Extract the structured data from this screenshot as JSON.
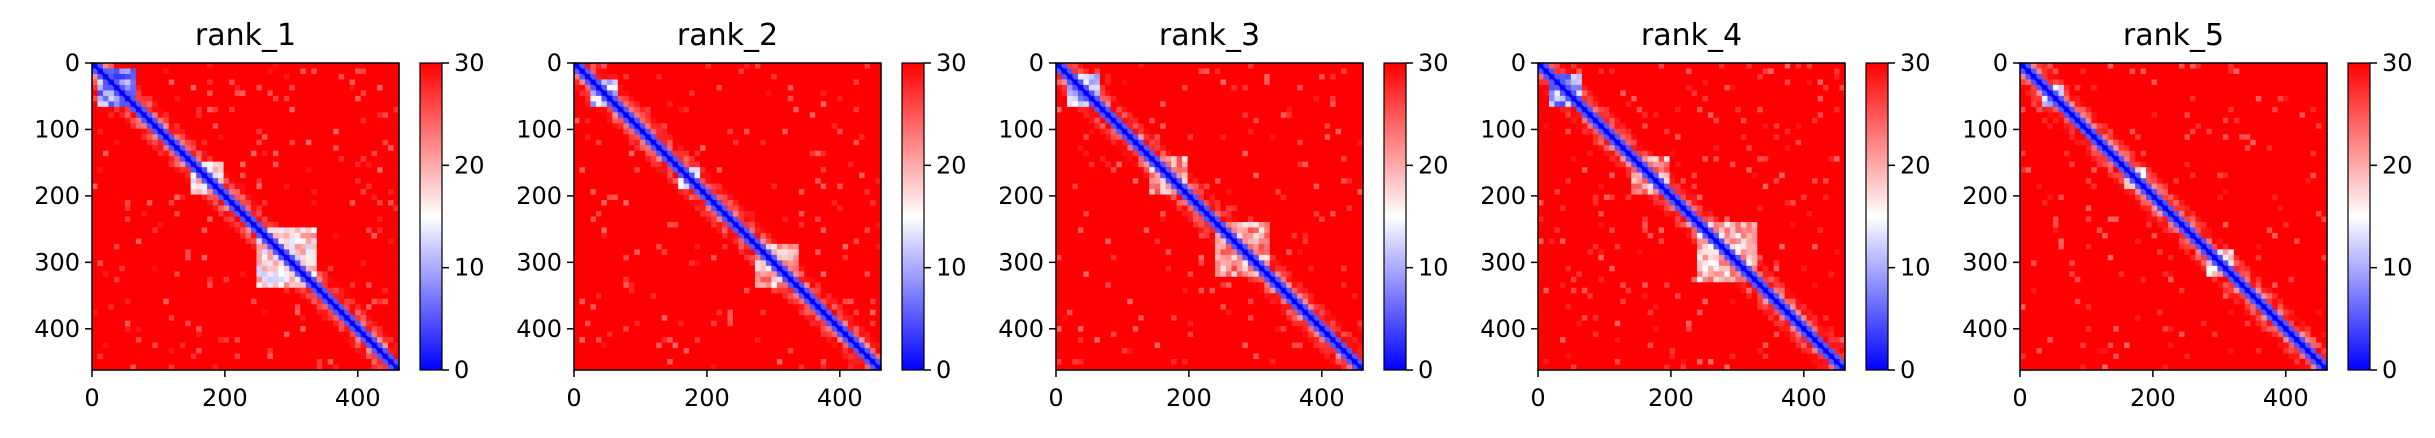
{
  "chart_data": [
    {
      "type": "heatmap",
      "title": "rank_1",
      "x_ticks": [
        0,
        200,
        400
      ],
      "y_ticks": [
        0,
        100,
        200,
        300,
        400
      ],
      "xlim": [
        0,
        462
      ],
      "ylim": [
        462,
        0
      ],
      "matrix_size": 462,
      "colorbar": {
        "ticks": [
          0,
          10,
          20,
          30
        ],
        "range": [
          0,
          30
        ],
        "colors": [
          "#0000ff",
          "#ffffff",
          "#ff0000"
        ]
      },
      "diagonal_domains": [
        {
          "start": 10,
          "end": 70,
          "value": 3
        },
        {
          "start": 150,
          "end": 195,
          "value": 12
        },
        {
          "start": 250,
          "end": 340,
          "value": 12
        },
        {
          "start": 385,
          "end": 405,
          "value": 6
        }
      ]
    },
    {
      "type": "heatmap",
      "title": "rank_2",
      "x_ticks": [
        0,
        200,
        400
      ],
      "y_ticks": [
        0,
        100,
        200,
        300,
        400
      ],
      "xlim": [
        0,
        462
      ],
      "ylim": [
        462,
        0
      ],
      "matrix_size": 462,
      "colorbar": {
        "ticks": [
          0,
          10,
          20,
          30
        ],
        "range": [
          0,
          30
        ],
        "colors": [
          "#0000ff",
          "#ffffff",
          "#ff0000"
        ]
      },
      "diagonal_domains": [
        {
          "start": 25,
          "end": 65,
          "value": 8
        },
        {
          "start": 155,
          "end": 190,
          "value": 12
        },
        {
          "start": 270,
          "end": 340,
          "value": 15
        },
        {
          "start": 385,
          "end": 405,
          "value": 6
        }
      ]
    },
    {
      "type": "heatmap",
      "title": "rank_3",
      "x_ticks": [
        0,
        200,
        400
      ],
      "y_ticks": [
        0,
        100,
        200,
        300,
        400
      ],
      "xlim": [
        0,
        462
      ],
      "ylim": [
        462,
        0
      ],
      "matrix_size": 462,
      "colorbar": {
        "ticks": [
          0,
          10,
          20,
          30
        ],
        "range": [
          0,
          30
        ],
        "colors": [
          "#0000ff",
          "#ffffff",
          "#ff0000"
        ]
      },
      "diagonal_domains": [
        {
          "start": 20,
          "end": 70,
          "value": 5
        },
        {
          "start": 140,
          "end": 200,
          "value": 16
        },
        {
          "start": 240,
          "end": 320,
          "value": 16
        },
        {
          "start": 385,
          "end": 405,
          "value": 6
        }
      ]
    },
    {
      "type": "heatmap",
      "title": "rank_4",
      "x_ticks": [
        0,
        200,
        400
      ],
      "y_ticks": [
        0,
        100,
        200,
        300,
        400
      ],
      "xlim": [
        0,
        462
      ],
      "ylim": [
        462,
        0
      ],
      "matrix_size": 462,
      "colorbar": {
        "ticks": [
          0,
          10,
          20,
          30
        ],
        "range": [
          0,
          30
        ],
        "colors": [
          "#0000ff",
          "#ffffff",
          "#ff0000"
        ]
      },
      "diagonal_domains": [
        {
          "start": 20,
          "end": 70,
          "value": 4
        },
        {
          "start": 140,
          "end": 200,
          "value": 16
        },
        {
          "start": 240,
          "end": 330,
          "value": 14
        },
        {
          "start": 385,
          "end": 405,
          "value": 6
        }
      ]
    },
    {
      "type": "heatmap",
      "title": "rank_5",
      "x_ticks": [
        0,
        200,
        400
      ],
      "y_ticks": [
        0,
        100,
        200,
        300,
        400
      ],
      "xlim": [
        0,
        462
      ],
      "ylim": [
        462,
        0
      ],
      "matrix_size": 462,
      "colorbar": {
        "ticks": [
          0,
          10,
          20,
          30
        ],
        "range": [
          0,
          30
        ],
        "colors": [
          "#0000ff",
          "#ffffff",
          "#ff0000"
        ]
      },
      "diagonal_domains": [
        {
          "start": 30,
          "end": 65,
          "value": 9
        },
        {
          "start": 160,
          "end": 190,
          "value": 14
        },
        {
          "start": 280,
          "end": 320,
          "value": 12
        },
        {
          "start": 385,
          "end": 405,
          "value": 6
        }
      ]
    }
  ]
}
